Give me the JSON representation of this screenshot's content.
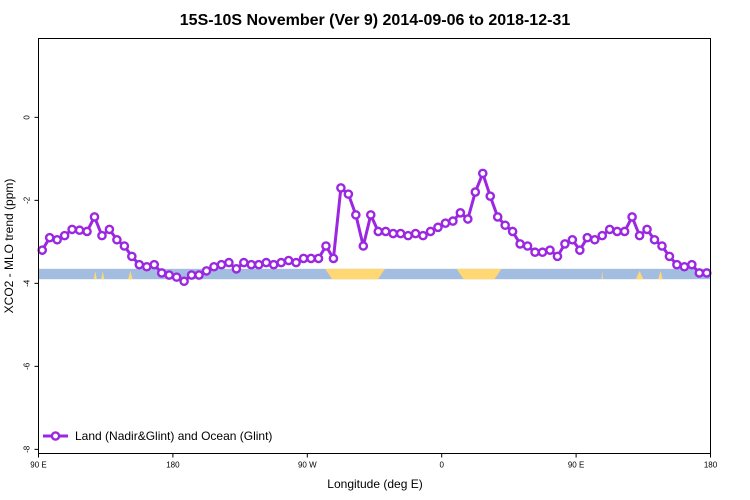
{
  "chart_data": {
    "type": "line",
    "title": "15S-10S November (Ver 9)   2014-09-06 to 2018-12-31",
    "xlabel": "Longitude (deg E)",
    "ylabel": "XCO2 - MLO trend (ppm)",
    "x_ticks": [
      {
        "value": 90,
        "label": "90 E"
      },
      {
        "value": 180,
        "label": "180"
      },
      {
        "value": 270,
        "label": "90 W"
      },
      {
        "value": 360,
        "label": "0"
      },
      {
        "value": 450,
        "label": "90 E"
      },
      {
        "value": 540,
        "label": "180"
      }
    ],
    "y_ticks": [
      0,
      -2,
      -4,
      -6,
      -8
    ],
    "xlim": [
      90,
      540
    ],
    "ylim": [
      -8.1,
      1.9
    ],
    "grid": false,
    "legend_position": "bottom-left",
    "colors": {
      "series": "#9b27e0",
      "ocean": "#a3bde0",
      "land": "#ffd873"
    },
    "land_ocean_strip": {
      "y_range": [
        -3.65,
        -3.9
      ],
      "land_segments": [
        [
          282,
          322
        ],
        [
          370,
          400
        ]
      ],
      "land_spikes": [
        [
          127,
          129
        ],
        [
          132,
          134
        ],
        [
          150,
          153
        ],
        [
          490,
          495
        ],
        [
          505,
          508
        ],
        [
          467,
          468
        ]
      ]
    },
    "series": [
      {
        "name": "Land (Nadir&Glint) and Ocean (Glint)",
        "x": [
          92.5,
          97.5,
          102.5,
          107.5,
          112.5,
          117.5,
          122.5,
          127.5,
          132.5,
          137.5,
          142.5,
          147.5,
          152.5,
          157.5,
          162.5,
          167.5,
          172.5,
          177.5,
          182.5,
          187.5,
          192.5,
          197.5,
          202.5,
          207.5,
          212.5,
          217.5,
          222.5,
          227.5,
          232.5,
          237.5,
          242.5,
          247.5,
          252.5,
          257.5,
          262.5,
          267.5,
          272.5,
          277.5,
          282.5,
          287.5,
          292.5,
          297.5,
          302.5,
          307.5,
          312.5,
          317.5,
          322.5,
          327.5,
          332.5,
          337.5,
          342.5,
          347.5,
          352.5,
          357.5,
          362.5,
          367.5,
          372.5,
          377.5,
          382.5,
          387.5,
          392.5,
          397.5,
          402.5,
          407.5,
          412.5,
          417.5,
          422.5,
          427.5,
          432.5,
          437.5,
          442.5,
          447.5,
          452.5,
          457.5,
          462.5,
          467.5,
          472.5,
          477.5,
          482.5,
          487.5,
          492.5,
          497.5,
          502.5,
          507.5,
          512.5,
          517.5,
          522.5,
          527.5,
          532.5,
          537.5
        ],
        "values": [
          -3.2,
          -2.9,
          -2.95,
          -2.85,
          -2.7,
          -2.72,
          -2.75,
          -2.4,
          -2.85,
          -2.7,
          -2.95,
          -3.1,
          -3.35,
          -3.55,
          -3.6,
          -3.55,
          -3.75,
          -3.8,
          -3.85,
          -3.95,
          -3.8,
          -3.8,
          -3.7,
          -3.6,
          -3.55,
          -3.5,
          -3.65,
          -3.5,
          -3.55,
          -3.55,
          -3.5,
          -3.55,
          -3.5,
          -3.45,
          -3.5,
          -3.4,
          -3.4,
          -3.4,
          -3.1,
          -3.4,
          -1.7,
          -1.85,
          -2.35,
          -3.1,
          -2.35,
          -2.75,
          -2.75,
          -2.8,
          -2.8,
          -2.85,
          -2.8,
          -2.85,
          -2.75,
          -2.65,
          -2.55,
          -2.5,
          -2.3,
          -2.45,
          -1.8,
          -1.35,
          -1.9,
          -2.4,
          -2.6,
          -2.75,
          -3.05,
          -3.1,
          -3.25,
          -3.25,
          -3.2,
          -3.35,
          -3.05,
          -2.95,
          -3.2,
          -2.9,
          -2.95,
          -2.85,
          -2.7,
          -2.75,
          -2.75,
          -2.4,
          -2.85,
          -2.7,
          -2.95,
          -3.1,
          -3.35,
          -3.55,
          -3.6,
          -3.55,
          -3.75,
          -3.75
        ]
      }
    ]
  }
}
